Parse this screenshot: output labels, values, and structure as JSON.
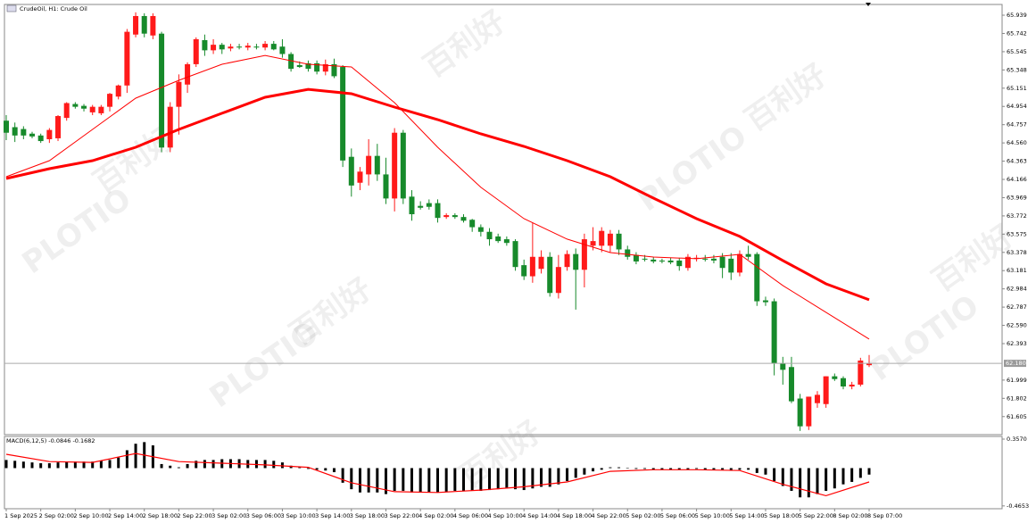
{
  "chart_data": [
    {
      "type": "candlestick",
      "title": "CrudeOil, H1:  Crude Oil",
      "watermarks": [
        "PLOTIO",
        "百利好"
      ],
      "up_color": "#ff1a1a",
      "down_color": "#178a2b",
      "categories": [
        "1 Sep 2025",
        null,
        null,
        null,
        "2 Sep 02:00",
        null,
        null,
        null,
        "2 Sep 10:00",
        null,
        null,
        null,
        "2 Sep 14:00",
        null,
        null,
        null,
        "2 Sep 18:00",
        null,
        null,
        null,
        "2 Sep 22:00",
        null,
        null,
        null,
        "3 Sep 02:00",
        null,
        null,
        null,
        "3 Sep 06:00",
        null,
        null,
        null,
        "3 Sep 10:00",
        null,
        null,
        null,
        "3 Sep 14:00",
        null,
        null,
        null,
        "3 Sep 18:00",
        null,
        null,
        null,
        "3 Sep 22:00",
        null,
        null,
        null,
        "4 Sep 02:00",
        null,
        null,
        null,
        "4 Sep 06:00",
        null,
        null,
        null,
        "4 Sep 10:00",
        null,
        null,
        null,
        "4 Sep 14:00",
        null,
        null,
        null,
        "4 Sep 18:00",
        null,
        null,
        null,
        "4 Sep 22:00",
        null,
        null,
        null,
        "5 Sep 02:00",
        null,
        null,
        null,
        "5 Sep 06:00",
        null,
        null,
        null,
        "5 Sep 10:00",
        null,
        null,
        null,
        "5 Sep 14:00",
        null,
        null,
        null,
        "5 Sep 18:00",
        null,
        null,
        null,
        "5 Sep 22:00",
        null,
        null,
        null,
        "8 Sep 02:00",
        null,
        null,
        null,
        "8 Sep 07:00"
      ],
      "candles": [
        [
          64.8,
          64.86,
          64.59,
          64.67
        ],
        [
          64.73,
          64.78,
          64.57,
          64.64
        ],
        [
          64.71,
          64.74,
          64.6,
          64.64
        ],
        [
          64.66,
          64.68,
          64.61,
          64.63
        ],
        [
          64.64,
          64.66,
          64.56,
          64.58
        ],
        [
          64.6,
          64.72,
          64.56,
          64.7
        ],
        [
          64.61,
          64.86,
          64.58,
          64.85
        ],
        [
          64.83,
          65.0,
          64.8,
          64.99
        ],
        [
          64.98,
          65.0,
          64.93,
          64.95
        ],
        [
          64.96,
          64.98,
          64.9,
          64.93
        ],
        [
          64.89,
          64.97,
          64.86,
          64.95
        ],
        [
          64.88,
          64.97,
          64.86,
          64.95
        ],
        [
          64.95,
          65.1,
          64.9,
          65.09
        ],
        [
          65.06,
          65.19,
          65.03,
          65.18
        ],
        [
          65.18,
          65.79,
          65.1,
          65.76
        ],
        [
          65.73,
          65.97,
          65.7,
          65.93
        ],
        [
          65.93,
          65.96,
          65.7,
          65.74
        ],
        [
          65.72,
          65.96,
          65.68,
          65.93
        ],
        [
          65.74,
          65.76,
          64.46,
          64.51
        ],
        [
          64.51,
          65.0,
          64.46,
          64.95
        ],
        [
          64.95,
          65.3,
          64.65,
          65.22
        ],
        [
          65.19,
          65.43,
          65.1,
          65.41
        ],
        [
          65.41,
          65.7,
          65.38,
          65.68
        ],
        [
          65.67,
          65.73,
          65.5,
          65.56
        ],
        [
          65.56,
          65.68,
          65.52,
          65.62
        ],
        [
          65.62,
          65.64,
          65.52,
          65.57
        ],
        [
          65.58,
          65.63,
          65.55,
          65.6
        ],
        [
          65.6,
          65.63,
          65.57,
          65.59
        ],
        [
          65.59,
          65.64,
          65.56,
          65.61
        ],
        [
          65.6,
          65.63,
          65.57,
          65.59
        ],
        [
          65.59,
          65.66,
          65.56,
          65.63
        ],
        [
          65.63,
          65.66,
          65.56,
          65.57
        ],
        [
          65.6,
          65.68,
          65.48,
          65.52
        ],
        [
          65.52,
          65.54,
          65.33,
          65.36
        ],
        [
          65.4,
          65.44,
          65.37,
          65.38
        ],
        [
          65.42,
          65.45,
          65.33,
          65.36
        ],
        [
          65.42,
          65.45,
          65.3,
          65.33
        ],
        [
          65.33,
          65.46,
          65.29,
          65.41
        ],
        [
          65.41,
          65.47,
          65.26,
          65.28
        ],
        [
          65.38,
          65.4,
          64.3,
          64.37
        ],
        [
          64.41,
          64.5,
          63.98,
          64.1
        ],
        [
          64.13,
          64.3,
          64.05,
          64.25
        ],
        [
          64.22,
          64.6,
          64.1,
          64.42
        ],
        [
          64.42,
          64.55,
          64.15,
          64.22
        ],
        [
          64.22,
          64.4,
          63.9,
          63.96
        ],
        [
          63.96,
          64.72,
          63.82,
          64.67
        ],
        [
          64.67,
          64.7,
          63.9,
          63.96
        ],
        [
          63.98,
          64.05,
          63.72,
          63.79
        ],
        [
          63.88,
          63.93,
          63.84,
          63.86
        ],
        [
          63.91,
          63.95,
          63.84,
          63.87
        ],
        [
          63.91,
          63.95,
          63.7,
          63.75
        ],
        [
          63.76,
          63.8,
          63.74,
          63.78
        ],
        [
          63.78,
          63.8,
          63.74,
          63.76
        ],
        [
          63.76,
          63.79,
          63.7,
          63.72
        ],
        [
          63.73,
          63.74,
          63.6,
          63.65
        ],
        [
          63.65,
          63.68,
          63.55,
          63.6
        ],
        [
          63.6,
          63.64,
          63.45,
          63.52
        ],
        [
          63.55,
          63.58,
          63.48,
          63.5
        ],
        [
          63.52,
          63.55,
          63.45,
          63.48
        ],
        [
          63.5,
          63.52,
          63.18,
          63.22
        ],
        [
          63.24,
          63.3,
          63.08,
          63.12
        ],
        [
          63.12,
          63.7,
          63.05,
          63.33
        ],
        [
          63.2,
          63.4,
          63.15,
          63.33
        ],
        [
          63.33,
          63.38,
          62.9,
          62.94
        ],
        [
          62.94,
          63.35,
          62.88,
          63.22
        ],
        [
          63.22,
          63.4,
          63.18,
          63.36
        ],
        [
          63.36,
          63.42,
          62.76,
          63.19
        ],
        [
          63.19,
          63.58,
          63.0,
          63.52
        ],
        [
          63.45,
          63.65,
          63.4,
          63.5
        ],
        [
          63.45,
          63.65,
          63.38,
          63.61
        ],
        [
          63.45,
          63.62,
          63.38,
          63.58
        ],
        [
          63.58,
          63.62,
          63.35,
          63.41
        ],
        [
          63.41,
          63.45,
          63.3,
          63.33
        ],
        [
          63.35,
          63.38,
          63.25,
          63.28
        ],
        [
          63.31,
          63.35,
          63.28,
          63.3
        ],
        [
          63.3,
          63.33,
          63.26,
          63.28
        ],
        [
          63.29,
          63.31,
          63.26,
          63.28
        ],
        [
          63.29,
          63.32,
          63.25,
          63.27
        ],
        [
          63.29,
          63.32,
          63.18,
          63.23
        ],
        [
          63.21,
          63.36,
          63.18,
          63.33
        ],
        [
          63.31,
          63.35,
          63.28,
          63.32
        ],
        [
          63.31,
          63.35,
          63.28,
          63.3
        ],
        [
          63.31,
          63.35,
          63.26,
          63.29
        ],
        [
          63.33,
          63.37,
          63.1,
          63.21
        ],
        [
          63.31,
          63.37,
          63.08,
          63.16
        ],
        [
          63.16,
          63.4,
          63.12,
          63.36
        ],
        [
          63.36,
          63.45,
          63.3,
          63.33
        ],
        [
          63.36,
          63.38,
          62.8,
          62.85
        ],
        [
          62.86,
          62.9,
          62.8,
          62.84
        ],
        [
          62.85,
          62.88,
          62.05,
          62.18
        ],
        [
          62.18,
          62.25,
          61.95,
          62.11
        ],
        [
          62.14,
          62.25,
          61.75,
          61.77
        ],
        [
          61.8,
          61.85,
          61.45,
          61.5
        ],
        [
          61.5,
          61.82,
          61.46,
          61.82
        ],
        [
          61.75,
          61.88,
          61.7,
          61.84
        ],
        [
          61.74,
          62.04,
          61.7,
          62.04
        ],
        [
          62.04,
          62.07,
          61.99,
          62.01
        ],
        [
          62.02,
          62.04,
          61.9,
          61.93
        ],
        [
          61.93,
          61.98,
          61.9,
          61.95
        ],
        [
          61.95,
          62.24,
          61.93,
          62.21
        ],
        [
          62.16,
          62.27,
          62.14,
          62.18
        ]
      ],
      "series": [
        {
          "color": "#ff0000",
          "x": [
            0,
            5,
            10,
            15,
            20,
            25,
            30,
            35,
            40,
            45,
            50,
            55,
            60,
            65,
            70,
            75,
            80,
            85,
            90,
            95,
            100
          ],
          "values": [
            64.176,
            64.282,
            64.369,
            64.513,
            64.706,
            64.88,
            65.053,
            65.139,
            65.091,
            64.947,
            64.812,
            64.658,
            64.523,
            64.369,
            64.195,
            63.964,
            63.742,
            63.55,
            63.29,
            63.039,
            62.866
          ]
        },
        {
          "color": "#ff0000",
          "x": [
            0,
            5,
            10,
            15,
            20,
            25,
            30,
            35,
            40,
            45,
            50,
            55,
            60,
            65,
            70,
            75,
            80,
            85,
            90,
            95,
            100
          ],
          "values": [
            64.195,
            64.369,
            64.706,
            65.043,
            65.236,
            65.409,
            65.505,
            65.409,
            65.38,
            64.995,
            64.513,
            64.08,
            63.742,
            63.521,
            63.376,
            63.328,
            63.309,
            63.357,
            63.02,
            62.731,
            62.442
          ]
        }
      ],
      "current_price": {
        "value": 62.18,
        "label": "62.180"
      },
      "ylim": [
        61.41,
        66.055
      ],
      "yticks": [
        65.939,
        65.742,
        65.545,
        65.348,
        65.151,
        64.954,
        64.757,
        {
          "value": 64.56,
          "label": "64.560"
        },
        64.363,
        64.166,
        63.969,
        63.772,
        63.575,
        63.378,
        63.181,
        62.984,
        62.787,
        {
          "value": 62.59,
          "label": "62.590"
        },
        62.393,
        61.999,
        61.802,
        61.605
      ]
    },
    {
      "type": "macd",
      "title": "MACD(6,12,5) -0.0846 -0.1682",
      "color": "#000000",
      "values": [
        0.1,
        0.09,
        0.08,
        0.07,
        0.06,
        0.06,
        0.07,
        0.08,
        0.08,
        0.08,
        0.08,
        0.09,
        0.1,
        0.13,
        0.22,
        0.3,
        0.32,
        0.28,
        0.05,
        0.03,
        0.01,
        0.05,
        0.09,
        0.1,
        0.1,
        0.11,
        0.11,
        0.11,
        0.1,
        0.1,
        0.1,
        0.09,
        0.07,
        0.03,
        0.01,
        -0.01,
        -0.02,
        -0.03,
        -0.05,
        -0.18,
        -0.26,
        -0.3,
        -0.3,
        -0.3,
        -0.32,
        -0.28,
        -0.28,
        -0.3,
        -0.3,
        -0.3,
        -0.3,
        -0.29,
        -0.28,
        -0.28,
        -0.28,
        -0.28,
        -0.27,
        -0.26,
        -0.25,
        -0.26,
        -0.27,
        -0.25,
        -0.23,
        -0.23,
        -0.2,
        -0.16,
        -0.12,
        -0.08,
        -0.04,
        -0.02,
        0.01,
        0.01,
        0.0,
        -0.01,
        -0.01,
        -0.02,
        -0.02,
        -0.02,
        -0.02,
        -0.02,
        -0.01,
        -0.02,
        -0.02,
        -0.02,
        -0.03,
        -0.02,
        -0.02,
        -0.06,
        -0.08,
        -0.16,
        -0.22,
        -0.28,
        -0.36,
        -0.36,
        -0.32,
        -0.28,
        -0.25,
        -0.2,
        -0.17,
        -0.12,
        -0.08
      ],
      "signal": {
        "color": "#ff0000",
        "x": [
          0,
          5,
          10,
          15,
          20,
          25,
          30,
          35,
          40,
          45,
          50,
          55,
          60,
          65,
          70,
          75,
          80,
          85,
          90,
          95,
          100
        ],
        "values": [
          0.17,
          0.08,
          0.07,
          0.18,
          0.08,
          0.06,
          0.04,
          0.01,
          -0.18,
          -0.29,
          -0.3,
          -0.27,
          -0.23,
          -0.17,
          -0.04,
          -0.02,
          -0.02,
          -0.03,
          -0.2,
          -0.34,
          -0.17
        ]
      },
      "ylim": [
        -0.5,
        0.39
      ],
      "yticks": [
        {
          "value": 0.357,
          "label": "0.3570"
        },
        -0.4653
      ]
    }
  ]
}
